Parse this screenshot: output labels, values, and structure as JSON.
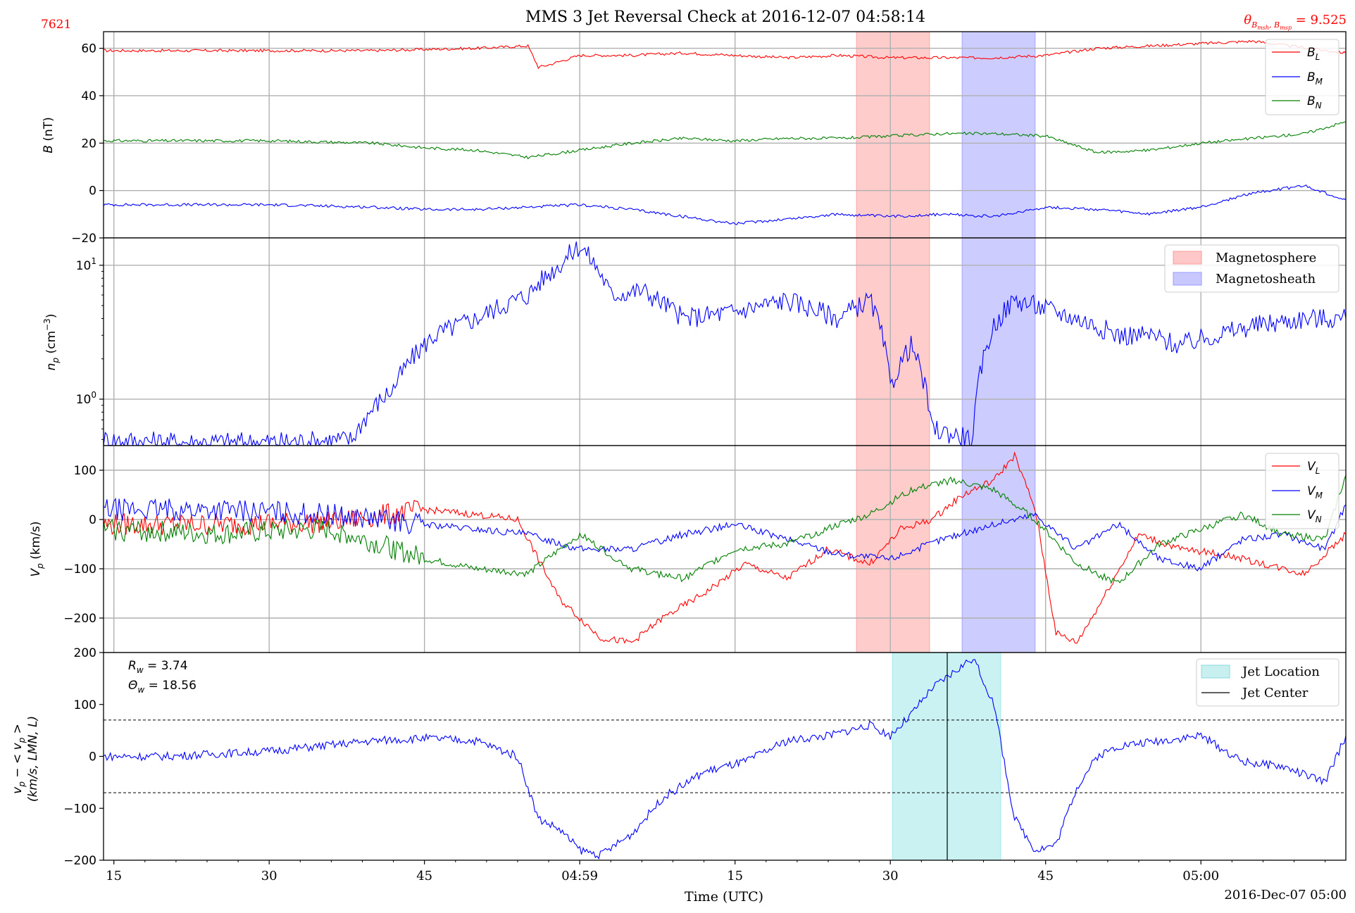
{
  "figure": {
    "title": "MMS 3 Jet Reversal Check at 2016-12-07 04:58:14",
    "id_label": "7621",
    "theta_label": "θ_{B_msh,B_msp} = 9.525",
    "theta_value": "9.525",
    "xlabel": "Time (UTC)",
    "date_label": "2016-Dec-07 05:00",
    "x_ticks": [
      "15",
      "30",
      "45",
      "04:59",
      "15",
      "30",
      "45",
      "05:00"
    ],
    "colors": {
      "red": "#ff0000",
      "blue": "#0000ff",
      "green": "#008000",
      "cyan": "#40d0d0",
      "msp_fill": "#ffc8c8",
      "msh_fill": "#c8c8ff",
      "jet_fill": "#c8f0f0"
    }
  },
  "chart_data": [
    {
      "type": "line",
      "panel": "B",
      "ylabel": "B (nT)",
      "ylim": [
        -20,
        67
      ],
      "y_ticks": [
        "60",
        "40",
        "20",
        "0",
        "−20"
      ],
      "x_range_s": [
        14,
        134
      ],
      "legend": [
        "B_L",
        "B_M",
        "B_N"
      ],
      "series": [
        {
          "name": "B_L",
          "x": [
            14,
            30,
            40,
            50,
            55,
            56,
            57,
            60,
            65,
            70,
            75,
            80,
            85,
            90,
            95,
            100,
            105,
            110,
            115,
            120,
            125,
            134
          ],
          "values": [
            59,
            59,
            59,
            60,
            61,
            52,
            53,
            57,
            57,
            58,
            57,
            56,
            57,
            56,
            56,
            56,
            57,
            60,
            61,
            62,
            63,
            58
          ]
        },
        {
          "name": "B_M",
          "x": [
            14,
            30,
            40,
            45,
            50,
            55,
            60,
            65,
            70,
            75,
            80,
            85,
            90,
            95,
            100,
            105,
            110,
            115,
            120,
            125,
            130,
            134
          ],
          "values": [
            -6,
            -6,
            -7,
            -8,
            -8,
            -7,
            -6,
            -8,
            -11,
            -14,
            -12,
            -10,
            -11,
            -10,
            -11,
            -7,
            -8,
            -10,
            -7,
            -1,
            2,
            -4
          ]
        },
        {
          "name": "B_N",
          "x": [
            14,
            30,
            40,
            45,
            50,
            55,
            60,
            65,
            70,
            75,
            80,
            85,
            90,
            95,
            100,
            105,
            110,
            115,
            120,
            125,
            130,
            134
          ],
          "values": [
            21,
            21,
            20,
            18,
            17,
            14,
            17,
            20,
            22,
            21,
            22,
            22,
            23,
            24,
            24,
            23,
            16,
            17,
            20,
            22,
            24,
            29
          ]
        }
      ]
    },
    {
      "type": "line",
      "panel": "n_p",
      "ylabel": "n_p (cm^-3)",
      "yscale": "log",
      "ylim": [
        0.45,
        16
      ],
      "y_ticks": [
        "10^1",
        "10^0"
      ],
      "legend": [
        "Magnetosphere",
        "Magnetosheath"
      ],
      "series": [
        {
          "name": "n_p",
          "x": [
            14,
            20,
            30,
            38,
            42,
            46,
            50,
            55,
            58,
            60,
            63,
            66,
            70,
            75,
            80,
            85,
            88,
            90,
            92,
            94,
            96,
            98,
            100,
            102,
            104,
            106,
            108,
            110,
            112,
            115,
            118,
            120,
            125,
            130,
            134
          ],
          "values": [
            0.5,
            0.48,
            0.48,
            0.5,
            1.2,
            3.0,
            4.0,
            6.0,
            10.0,
            14.0,
            6.0,
            6.5,
            4.0,
            4.5,
            5.5,
            4.0,
            5.5,
            1.2,
            2.5,
            0.6,
            0.55,
            0.5,
            3.5,
            5.5,
            5.0,
            4.5,
            4.0,
            3.5,
            3.0,
            3.0,
            2.5,
            2.8,
            3.5,
            4.0,
            4.0
          ]
        }
      ]
    },
    {
      "type": "line",
      "panel": "V_p",
      "ylabel": "V_p (km/s)",
      "ylim": [
        -270,
        150
      ],
      "y_ticks": [
        "100",
        "0",
        "−100",
        "−200"
      ],
      "legend": [
        "V_L",
        "V_M",
        "V_N"
      ],
      "series": [
        {
          "name": "V_L",
          "x": [
            14,
            25,
            36,
            45,
            50,
            54,
            56,
            58,
            60,
            62,
            65,
            68,
            72,
            76,
            80,
            84,
            88,
            91,
            94,
            97,
            100,
            102,
            104,
            106,
            108,
            110,
            114,
            118,
            122,
            126,
            130,
            134
          ],
          "values": [
            -10,
            -10,
            -5,
            20,
            10,
            0,
            -80,
            -160,
            -200,
            -240,
            -250,
            -200,
            -150,
            -90,
            -120,
            -60,
            -90,
            -20,
            0,
            50,
            80,
            130,
            20,
            -230,
            -250,
            -180,
            -30,
            -60,
            -70,
            -90,
            -110,
            -30
          ]
        },
        {
          "name": "V_M",
          "x": [
            14,
            25,
            36,
            45,
            50,
            55,
            60,
            65,
            70,
            75,
            80,
            85,
            90,
            95,
            100,
            104,
            108,
            112,
            116,
            120,
            124,
            128,
            132,
            134
          ],
          "values": [
            20,
            20,
            10,
            -10,
            -20,
            -30,
            -60,
            -60,
            -30,
            -10,
            -40,
            -70,
            -80,
            -40,
            -10,
            10,
            -60,
            -10,
            -80,
            -100,
            -40,
            -30,
            -60,
            30
          ]
        },
        {
          "name": "V_N",
          "x": [
            14,
            25,
            36,
            45,
            50,
            55,
            60,
            65,
            70,
            75,
            80,
            85,
            88,
            92,
            96,
            100,
            104,
            108,
            112,
            116,
            120,
            124,
            128,
            132,
            134
          ],
          "values": [
            -20,
            -30,
            -20,
            -80,
            -100,
            -110,
            -30,
            -100,
            -120,
            -60,
            -50,
            -10,
            10,
            60,
            80,
            60,
            0,
            -90,
            -130,
            -50,
            -20,
            10,
            -30,
            -40,
            90
          ]
        }
      ]
    },
    {
      "type": "line",
      "panel": "V_jet",
      "ylabel": "v_p − < v_p > (km/s, LMN, L)",
      "ylim": [
        -200,
        200
      ],
      "y_ticks": [
        "200",
        "100",
        "0",
        "−100",
        "−200"
      ],
      "thresholds": [
        70,
        -70
      ],
      "legend": [
        "Jet Location",
        "Jet Center"
      ],
      "annotation_rw": "R_w = 3.74",
      "annotation_thetaw": "Θ_w = 18.56",
      "series": [
        {
          "name": "v_jet",
          "x": [
            14,
            20,
            30,
            40,
            45,
            50,
            54,
            56,
            58,
            60,
            62,
            65,
            68,
            72,
            76,
            80,
            84,
            88,
            90,
            92,
            94,
            96,
            98,
            100,
            102,
            104,
            106,
            108,
            110,
            112,
            116,
            120,
            124,
            128,
            132,
            134
          ],
          "values": [
            0,
            0,
            10,
            30,
            35,
            30,
            0,
            -120,
            -140,
            -180,
            -190,
            -150,
            -80,
            -30,
            -10,
            30,
            40,
            60,
            40,
            80,
            130,
            160,
            190,
            100,
            -120,
            -180,
            -170,
            -60,
            0,
            20,
            30,
            40,
            -10,
            -20,
            -50,
            40
          ]
        }
      ]
    }
  ]
}
